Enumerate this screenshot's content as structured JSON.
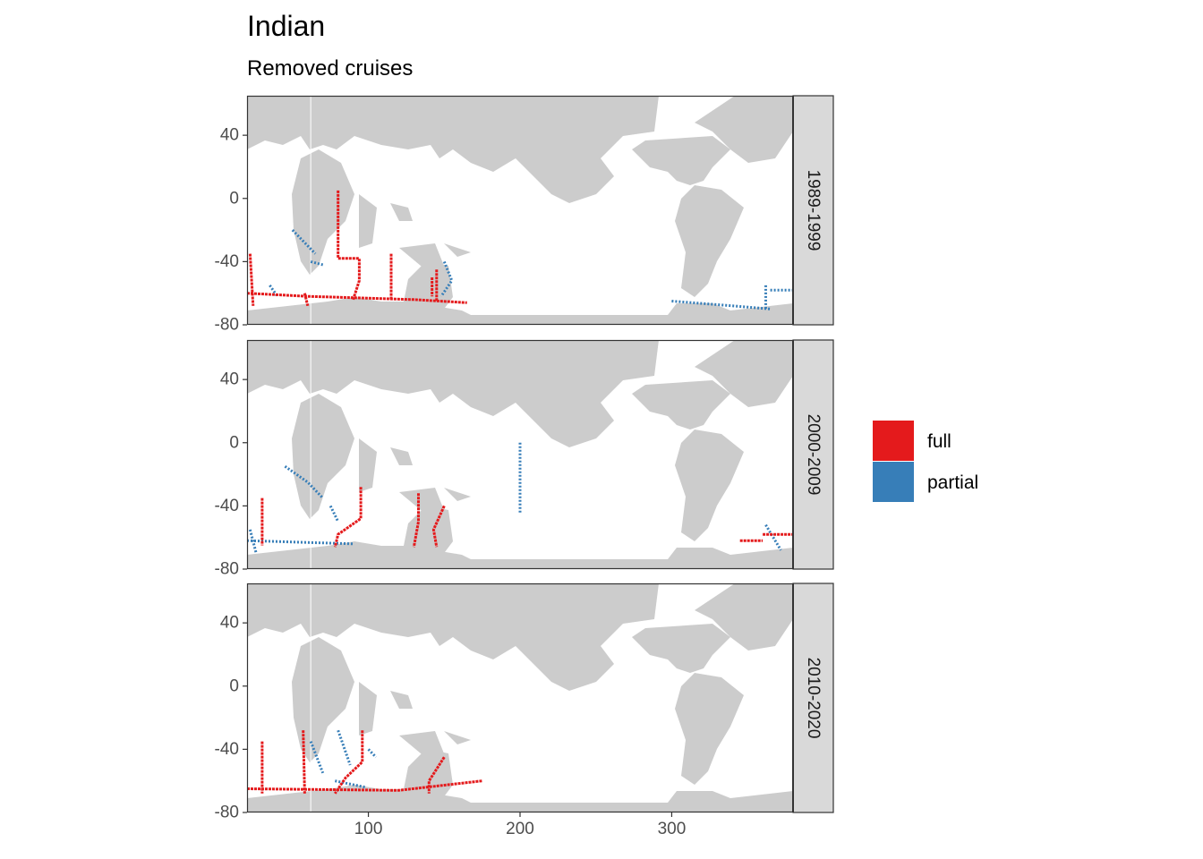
{
  "chart_data": {
    "type": "heatmap",
    "title": "Indian",
    "subtitle": "Removed cruises",
    "xlabel": "",
    "ylabel": "",
    "xlim": [
      20,
      380
    ],
    "ylim": [
      -80,
      65
    ],
    "x_ticks": [
      100,
      200,
      300
    ],
    "y_ticks": [
      40,
      0,
      -40,
      -80
    ],
    "facets": [
      "1989-1999",
      "2000-2009",
      "2010-2020"
    ],
    "legend": {
      "position": "right",
      "entries": [
        {
          "label": "full",
          "color": "#E41A1C"
        },
        {
          "label": "partial",
          "color": "#377EB8"
        }
      ]
    },
    "land_color": "#CCCCCC",
    "panels": [
      {
        "facet": "1989-1999",
        "full": [
          [
            [
              58,
              -60
            ],
            [
              60,
              -68
            ]
          ],
          [
            [
              22,
              -35
            ],
            [
              24,
              -68
            ]
          ],
          [
            [
              80,
              5
            ],
            [
              80,
              -38
            ],
            [
              94,
              -38
            ],
            [
              94,
              -52
            ],
            [
              90,
              -64
            ]
          ],
          [
            [
              115,
              -35
            ],
            [
              115,
              -64
            ]
          ],
          [
            [
              142,
              -50
            ],
            [
              142,
              -62
            ]
          ],
          [
            [
              145,
              -45
            ],
            [
              145,
              -65
            ]
          ],
          [
            [
              20,
              -60
            ],
            [
              60,
              -62
            ],
            [
              130,
              -64
            ],
            [
              165,
              -66
            ]
          ]
        ],
        "partial": [
          [
            [
              35,
              -55
            ],
            [
              40,
              -62
            ]
          ],
          [
            [
              50,
              -20
            ],
            [
              58,
              -28
            ],
            [
              65,
              -35
            ]
          ],
          [
            [
              62,
              -40
            ],
            [
              70,
              -42
            ]
          ],
          [
            [
              150,
              -40
            ],
            [
              155,
              -52
            ],
            [
              148,
              -62
            ]
          ],
          [
            [
              300,
              -65
            ],
            [
              340,
              -68
            ],
            [
              365,
              -70
            ]
          ],
          [
            [
              362,
              -55
            ],
            [
              362,
              -70
            ]
          ],
          [
            [
              365,
              -58
            ],
            [
              380,
              -58
            ]
          ]
        ]
      },
      {
        "facet": "2000-2009",
        "full": [
          [
            [
              30,
              -35
            ],
            [
              30,
              -65
            ]
          ],
          [
            [
              95,
              -28
            ],
            [
              95,
              -48
            ],
            [
              80,
              -58
            ],
            [
              78,
              -66
            ]
          ],
          [
            [
              133,
              -32
            ],
            [
              133,
              -50
            ],
            [
              130,
              -66
            ]
          ],
          [
            [
              150,
              -40
            ],
            [
              143,
              -55
            ],
            [
              145,
              -66
            ]
          ],
          [
            [
              360,
              -58
            ],
            [
              380,
              -58
            ]
          ],
          [
            [
              345,
              -62
            ],
            [
              360,
              -62
            ]
          ]
        ],
        "partial": [
          [
            [
              20,
              -62
            ],
            [
              90,
              -64
            ]
          ],
          [
            [
              45,
              -15
            ],
            [
              60,
              -25
            ],
            [
              70,
              -35
            ]
          ],
          [
            [
              75,
              -40
            ],
            [
              80,
              -50
            ]
          ],
          [
            [
              22,
              -55
            ],
            [
              26,
              -70
            ]
          ],
          [
            [
              200,
              0
            ],
            [
              200,
              -45
            ]
          ],
          [
            [
              362,
              -52
            ],
            [
              372,
              -68
            ]
          ]
        ]
      },
      {
        "facet": "2010-2020",
        "full": [
          [
            [
              30,
              -35
            ],
            [
              30,
              -68
            ]
          ],
          [
            [
              57,
              -28
            ],
            [
              58,
              -68
            ]
          ],
          [
            [
              96,
              -28
            ],
            [
              96,
              -48
            ],
            [
              85,
              -58
            ],
            [
              78,
              -68
            ]
          ],
          [
            [
              150,
              -45
            ],
            [
              140,
              -60
            ],
            [
              140,
              -68
            ]
          ],
          [
            [
              20,
              -65
            ],
            [
              120,
              -66
            ],
            [
              175,
              -60
            ]
          ]
        ],
        "partial": [
          [
            [
              80,
              -28
            ],
            [
              88,
              -50
            ]
          ],
          [
            [
              62,
              -35
            ],
            [
              70,
              -55
            ]
          ],
          [
            [
              78,
              -60
            ],
            [
              98,
              -64
            ]
          ],
          [
            [
              100,
              -40
            ],
            [
              105,
              -45
            ]
          ]
        ]
      }
    ]
  }
}
